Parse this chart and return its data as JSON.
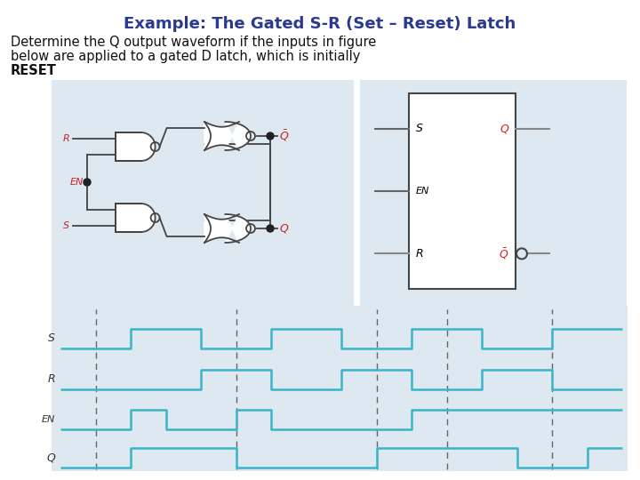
{
  "title": "Example: The Gated S-R (Set – Reset) Latch",
  "title_color": "#2b3a8f",
  "title_fontsize": 13,
  "body_line1": "Determine the Q output waveform if the inputs in figure",
  "body_line2": "below are applied to a gated D latch, which is initially",
  "body_line3": "RESET",
  "body_fontsize": 10.5,
  "body_color": "#111111",
  "bg_color": "#ffffff",
  "circuit_bg": "#dde8f0",
  "signal_color": "#3ab5c8",
  "gate_color": "#444444",
  "label_red": "#cc2222",
  "label_dark": "#333333",
  "S_wave": [
    0,
    0,
    1,
    1,
    0,
    0,
    1,
    1,
    0,
    0,
    1,
    1,
    0,
    0,
    1,
    1,
    1
  ],
  "R_wave": [
    0,
    0,
    0,
    0,
    1,
    1,
    0,
    0,
    1,
    1,
    0,
    0,
    1,
    1,
    0,
    0,
    0
  ],
  "EN_wave": [
    0,
    0,
    1,
    0,
    0,
    1,
    0,
    0,
    0,
    0,
    1,
    1,
    1,
    1,
    1,
    1,
    1
  ],
  "Q_wave": [
    0,
    0,
    1,
    1,
    1,
    0,
    0,
    0,
    0,
    1,
    1,
    1,
    1,
    0,
    0,
    1,
    1
  ],
  "dashed_times": [
    1,
    5,
    9,
    11,
    14
  ]
}
